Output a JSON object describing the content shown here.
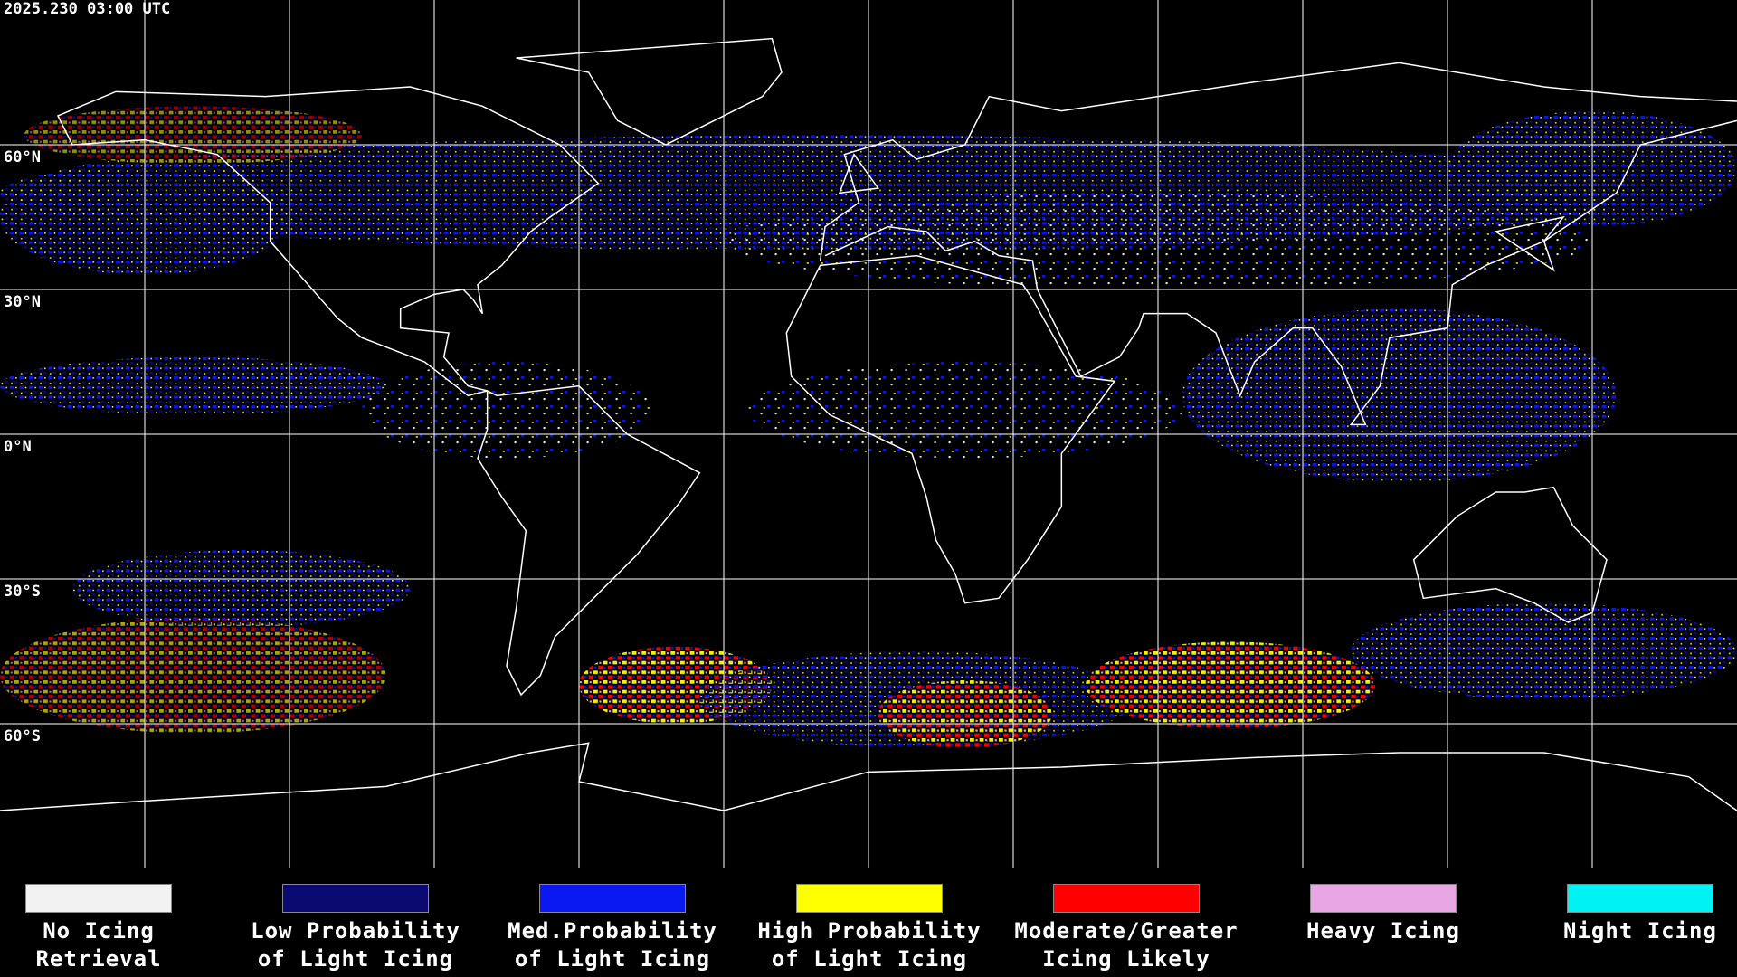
{
  "timestamp": "2025.230 03:00 UTC",
  "latitude_labels": [
    "60°N",
    "30°N",
    "0°N",
    "30°S",
    "60°S"
  ],
  "legend": {
    "items": [
      {
        "lines": [
          "No Icing",
          "Retrieval"
        ],
        "color": "#f2f2f2"
      },
      {
        "lines": [
          "Low Probability",
          "of Light Icing"
        ],
        "color": "#0a0a70"
      },
      {
        "lines": [
          "Med.Probability",
          "of Light Icing"
        ],
        "color": "#0a18f2"
      },
      {
        "lines": [
          "High Probability",
          "of Light Icing"
        ],
        "color": "#ffff00"
      },
      {
        "lines": [
          "Moderate/Greater",
          "Icing Likely"
        ],
        "color": "#ff0000"
      },
      {
        "lines": [
          "Heavy Icing"
        ],
        "color": "#e8a6e4"
      },
      {
        "lines": [
          "Night Icing"
        ],
        "color": "#00f2f2"
      }
    ]
  }
}
